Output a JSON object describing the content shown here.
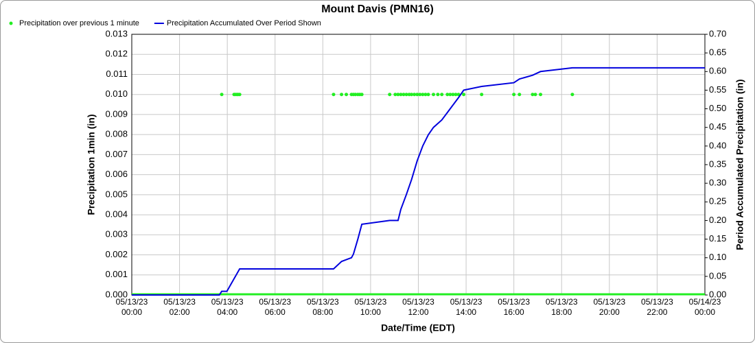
{
  "chart_data": {
    "type": "line",
    "title": "Mount Davis (PMN16)",
    "x_label": "Date/Time (EDT)",
    "y_label": "Precipitation 1min (in)",
    "y2_label": "Period Accumulated Precipitation (in)",
    "xlim": [
      "05/13/23 00:00",
      "05/14/23 00:00"
    ],
    "xticks": [
      "05/13/23 00:00",
      "05/13/23 02:00",
      "05/13/23 04:00",
      "05/13/23 06:00",
      "05/13/23 08:00",
      "05/13/23 10:00",
      "05/13/23 12:00",
      "05/13/23 14:00",
      "05/13/23 16:00",
      "05/13/23 18:00",
      "05/13/23 20:00",
      "05/13/23 22:00",
      "05/14/23 00:00"
    ],
    "ylim": [
      0,
      0.013
    ],
    "yticks": [
      {
        "value": 0,
        "label": "0.000"
      },
      {
        "value": 0.001,
        "label": "0.001"
      },
      {
        "value": 0.002,
        "label": "0.002"
      },
      {
        "value": 0.003,
        "label": "0.003"
      },
      {
        "value": 0.004,
        "label": "0.004"
      },
      {
        "value": 0.005,
        "label": "0.005"
      },
      {
        "value": 0.006,
        "label": "0.006"
      },
      {
        "value": 0.007,
        "label": "0.007"
      },
      {
        "value": 0.008,
        "label": "0.008"
      },
      {
        "value": 0.009,
        "label": "0.009"
      },
      {
        "value": 0.01,
        "label": "0.010"
      },
      {
        "value": 0.011,
        "label": "0.011"
      },
      {
        "value": 0.012,
        "label": "0.012"
      },
      {
        "value": 0.013,
        "label": "0.013"
      }
    ],
    "y2lim": [
      0,
      0.7
    ],
    "y2ticks": [
      {
        "value": 0,
        "label": "0.00"
      },
      {
        "value": 0.05,
        "label": "0.05"
      },
      {
        "value": 0.1,
        "label": "0.10"
      },
      {
        "value": 0.15,
        "label": "0.15"
      },
      {
        "value": 0.2,
        "label": "0.20"
      },
      {
        "value": 0.25,
        "label": "0.25"
      },
      {
        "value": 0.3,
        "label": "0.30"
      },
      {
        "value": 0.35,
        "label": "0.35"
      },
      {
        "value": 0.4,
        "label": "0.40"
      },
      {
        "value": 0.45,
        "label": "0.45"
      },
      {
        "value": 0.5,
        "label": "0.50"
      },
      {
        "value": 0.55,
        "label": "0.55"
      },
      {
        "value": 0.6,
        "label": "0.60"
      },
      {
        "value": 0.65,
        "label": "0.65"
      },
      {
        "value": 0.7,
        "label": "0.70"
      }
    ],
    "grid": true,
    "series": [
      {
        "name": "Precipitation over previous 1 minute",
        "color": "#22ee22",
        "marker": "dot",
        "x": [
          "05/13/23 03:46",
          "05/13/23 04:17",
          "05/13/23 04:20",
          "05/13/23 04:24",
          "05/13/23 04:27",
          "05/13/23 04:31",
          "05/13/23 08:27",
          "05/13/23 08:47",
          "05/13/23 08:59",
          "05/13/23 09:12",
          "05/13/23 09:17",
          "05/13/23 09:22",
          "05/13/23 09:28",
          "05/13/23 09:33",
          "05/13/23 09:38",
          "05/13/23 10:48",
          "05/13/23 11:02",
          "05/13/23 11:09",
          "05/13/23 11:16",
          "05/13/23 11:23",
          "05/13/23 11:30",
          "05/13/23 11:37",
          "05/13/23 11:43",
          "05/13/23 11:50",
          "05/13/23 11:57",
          "05/13/23 12:04",
          "05/13/23 12:11",
          "05/13/23 12:18",
          "05/13/23 12:25",
          "05/13/23 12:38",
          "05/13/23 12:49",
          "05/13/23 12:59",
          "05/13/23 13:13",
          "05/13/23 13:20",
          "05/13/23 13:27",
          "05/13/23 13:34",
          "05/13/23 13:41",
          "05/13/23 13:54",
          "05/13/23 14:39",
          "05/13/23 16:00",
          "05/13/23 16:14",
          "05/13/23 16:47",
          "05/13/23 16:54",
          "05/13/23 17:07",
          "05/13/23 18:27"
        ],
        "values": [
          0.01,
          0.01,
          0.01,
          0.01,
          0.01,
          0.01,
          0.01,
          0.01,
          0.01,
          0.01,
          0.01,
          0.01,
          0.01,
          0.01,
          0.01,
          0.01,
          0.01,
          0.01,
          0.01,
          0.01,
          0.01,
          0.01,
          0.01,
          0.01,
          0.01,
          0.01,
          0.01,
          0.01,
          0.01,
          0.01,
          0.01,
          0.01,
          0.01,
          0.01,
          0.01,
          0.01,
          0.01,
          0.01,
          0.01,
          0.01,
          0.01,
          0.01,
          0.01,
          0.01,
          0.01
        ]
      },
      {
        "name": "Precipitation Accumulated Over Period Shown",
        "color": "#0000dd",
        "marker": "line",
        "axis": "y2",
        "x": [
          "05/13/23 00:00",
          "05/13/23 03:40",
          "05/13/23 03:46",
          "05/13/23 03:59",
          "05/13/23 04:31",
          "05/13/23 08:27",
          "05/13/23 08:47",
          "05/13/23 09:12",
          "05/13/23 09:17",
          "05/13/23 09:28",
          "05/13/23 09:38",
          "05/13/23 10:48",
          "05/13/23 11:09",
          "05/13/23 11:16",
          "05/13/23 11:30",
          "05/13/23 11:43",
          "05/13/23 11:57",
          "05/13/23 12:11",
          "05/13/23 12:25",
          "05/13/23 12:38",
          "05/13/23 12:59",
          "05/13/23 13:13",
          "05/13/23 13:27",
          "05/13/23 13:41",
          "05/13/23 13:54",
          "05/13/23 14:39",
          "05/13/23 16:00",
          "05/13/23 16:14",
          "05/13/23 16:47",
          "05/13/23 17:07",
          "05/13/23 18:27",
          "05/14/23 00:00"
        ],
        "values": [
          0,
          0,
          0.01,
          0.01,
          0.07,
          0.07,
          0.09,
          0.1,
          0.11,
          0.15,
          0.19,
          0.2,
          0.2,
          0.23,
          0.27,
          0.31,
          0.36,
          0.4,
          0.43,
          0.45,
          0.47,
          0.49,
          0.51,
          0.53,
          0.55,
          0.56,
          0.57,
          0.58,
          0.59,
          0.6,
          0.61,
          0.61
        ]
      }
    ]
  }
}
